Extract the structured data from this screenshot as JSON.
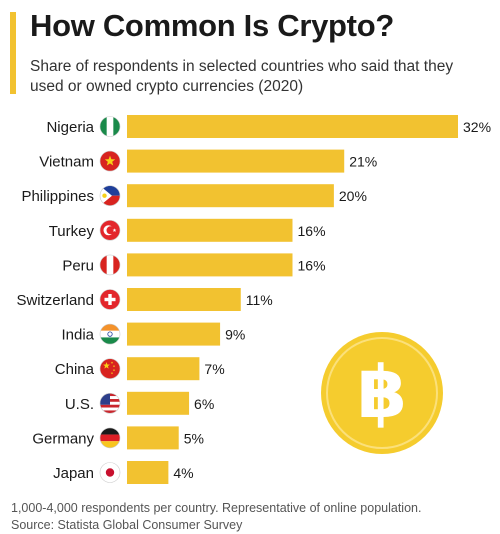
{
  "header": {
    "title": "How Common Is Crypto?",
    "subtitle": "Share of respondents in selected countries who said that they used or owned crypto currencies (2020)"
  },
  "footer": {
    "note": "1,000-4,000 respondents per country. Representative of online population.",
    "source": "Source: Statista Global Consumer Survey"
  },
  "colors": {
    "bar": "#f2c230",
    "accent": "#f2c230",
    "coin": "#f5cc2e"
  },
  "decoration": {
    "coin_icon": "bitcoin-coin-icon"
  },
  "chart_data": {
    "type": "bar",
    "orientation": "horizontal",
    "categories": [
      "Nigeria",
      "Vietnam",
      "Philippines",
      "Turkey",
      "Peru",
      "Switzerland",
      "India",
      "China",
      "U.S.",
      "Germany",
      "Japan"
    ],
    "flags": [
      "nigeria-flag-icon",
      "vietnam-flag-icon",
      "philippines-flag-icon",
      "turkey-flag-icon",
      "peru-flag-icon",
      "switzerland-flag-icon",
      "india-flag-icon",
      "china-flag-icon",
      "us-flag-icon",
      "germany-flag-icon",
      "japan-flag-icon"
    ],
    "values": [
      32,
      21,
      20,
      16,
      16,
      11,
      9,
      7,
      6,
      5,
      4
    ],
    "value_labels": [
      "32%",
      "21%",
      "20%",
      "16%",
      "16%",
      "11%",
      "9%",
      "7%",
      "6%",
      "5%",
      "4%"
    ],
    "xlim": [
      0,
      32
    ],
    "grid": false,
    "title": "How Common Is Crypto?"
  }
}
